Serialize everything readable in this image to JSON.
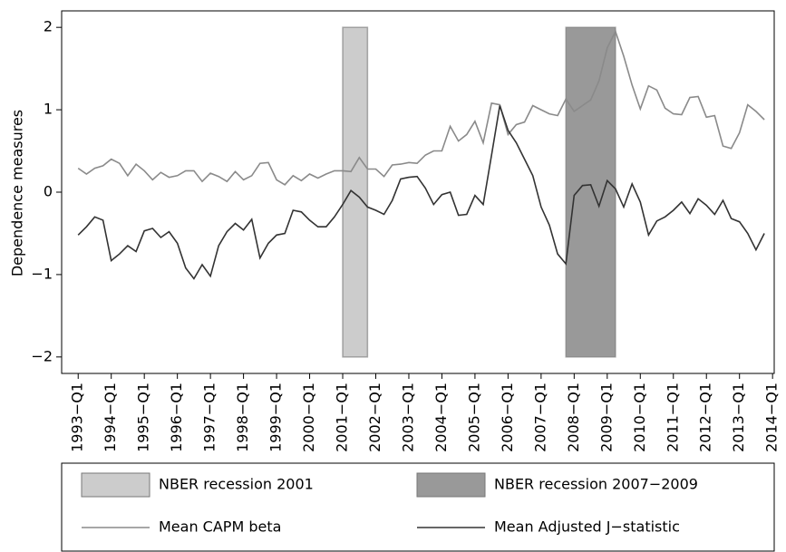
{
  "chart_data": {
    "type": "line",
    "y_label": "Dependence measures",
    "xlim": [
      1992.5,
      2014.05
    ],
    "ylim": [
      -2.2,
      2.2
    ],
    "yticks": [
      {
        "value": -2,
        "label": "−2"
      },
      {
        "value": -1,
        "label": "−1"
      },
      0,
      1,
      2
    ],
    "xticks": [
      {
        "value": 1993,
        "label": "1993−Q1"
      },
      {
        "value": 1994,
        "label": "1994−Q1"
      },
      {
        "value": 1995,
        "label": "1995−Q1"
      },
      {
        "value": 1996,
        "label": "1996−Q1"
      },
      {
        "value": 1997,
        "label": "1997−Q1"
      },
      {
        "value": 1998,
        "label": "1998−Q1"
      },
      {
        "value": 1999,
        "label": "1999−Q1"
      },
      {
        "value": 2000,
        "label": "2000−Q1"
      },
      {
        "value": 2001,
        "label": "2001−Q1"
      },
      {
        "value": 2002,
        "label": "2002−Q1"
      },
      {
        "value": 2003,
        "label": "2003−Q1"
      },
      {
        "value": 2004,
        "label": "2004−Q1"
      },
      {
        "value": 2005,
        "label": "2005−Q1"
      },
      {
        "value": 2006,
        "label": "2006−Q1"
      },
      {
        "value": 2007,
        "label": "2007−Q1"
      },
      {
        "value": 2008,
        "label": "2008−Q1"
      },
      {
        "value": 2009,
        "label": "2009−Q1"
      },
      {
        "value": 2010,
        "label": "2010−Q1"
      },
      {
        "value": 2011,
        "label": "2011−Q1"
      },
      {
        "value": 2012,
        "label": "2012−Q1"
      },
      {
        "value": 2013,
        "label": "2013−Q1"
      },
      {
        "value": 2014,
        "label": "2014−Q1"
      }
    ],
    "bands": [
      {
        "name": "NBER recession 2001",
        "color": "#cccccc",
        "from": 2001,
        "to": 2001.75,
        "ymin": -2,
        "ymax": 2
      },
      {
        "name": "NBER recession 2007−2009",
        "color": "#999999",
        "from": 2007.75,
        "to": 2009.25,
        "ymin": -2,
        "ymax": 2
      }
    ],
    "x": [
      1993,
      1993.25,
      1993.5,
      1993.75,
      1994,
      1994.25,
      1994.5,
      1994.75,
      1995,
      1995.25,
      1995.5,
      1995.75,
      1996,
      1996.25,
      1996.5,
      1996.75,
      1997,
      1997.25,
      1997.5,
      1997.75,
      1998,
      1998.25,
      1998.5,
      1998.75,
      1999,
      1999.25,
      1999.5,
      1999.75,
      2000,
      2000.25,
      2000.5,
      2000.75,
      2001,
      2001.25,
      2001.5,
      2001.75,
      2002,
      2002.25,
      2002.5,
      2002.75,
      2003,
      2003.25,
      2003.5,
      2003.75,
      2004,
      2004.25,
      2004.5,
      2004.75,
      2005,
      2005.25,
      2005.5,
      2005.75,
      2006,
      2006.25,
      2006.5,
      2006.75,
      2007,
      2007.25,
      2007.5,
      2007.75,
      2008,
      2008.25,
      2008.5,
      2008.75,
      2009,
      2009.25,
      2009.5,
      2009.75,
      2010,
      2010.25,
      2010.5,
      2010.75,
      2011,
      2011.25,
      2011.5,
      2011.75,
      2012,
      2012.25,
      2012.5,
      2012.75,
      2013,
      2013.25,
      2013.5,
      2013.75
    ],
    "series": [
      {
        "name": "Mean CAPM beta",
        "color": "#8a8a8a",
        "values": [
          0.29,
          0.22,
          0.29,
          0.32,
          0.4,
          0.35,
          0.2,
          0.34,
          0.26,
          0.15,
          0.24,
          0.18,
          0.2,
          0.26,
          0.26,
          0.13,
          0.23,
          0.19,
          0.13,
          0.25,
          0.15,
          0.2,
          0.35,
          0.36,
          0.15,
          0.09,
          0.2,
          0.14,
          0.22,
          0.17,
          0.22,
          0.26,
          0.26,
          0.25,
          0.42,
          0.28,
          0.28,
          0.19,
          0.33,
          0.34,
          0.36,
          0.35,
          0.45,
          0.5,
          0.5,
          0.8,
          0.62,
          0.7,
          0.86,
          0.6,
          1.08,
          1.06,
          0.7,
          0.82,
          0.85,
          1.05,
          1.0,
          0.95,
          0.93,
          1.13,
          0.98,
          1.05,
          1.12,
          1.35,
          1.75,
          1.95,
          1.65,
          1.3,
          1.01,
          1.29,
          1.24,
          1.02,
          0.95,
          0.94,
          1.15,
          1.16,
          0.91,
          0.93,
          0.56,
          0.53,
          0.72,
          1.06,
          0.98,
          0.88
        ]
      },
      {
        "name": "Mean Adjusted J−statistic",
        "color": "#333333",
        "values": [
          -0.52,
          -0.42,
          -0.3,
          -0.34,
          -0.83,
          -0.75,
          -0.65,
          -0.72,
          -0.47,
          -0.44,
          -0.55,
          -0.48,
          -0.62,
          -0.92,
          -1.05,
          -0.88,
          -1.02,
          -0.65,
          -0.48,
          -0.38,
          -0.46,
          -0.33,
          -0.8,
          -0.62,
          -0.52,
          -0.5,
          -0.22,
          -0.24,
          -0.34,
          -0.42,
          -0.42,
          -0.3,
          -0.15,
          0.02,
          -0.06,
          -0.18,
          -0.22,
          -0.27,
          -0.1,
          0.16,
          0.18,
          0.19,
          0.05,
          -0.15,
          -0.03,
          0.0,
          -0.28,
          -0.27,
          -0.04,
          -0.15,
          0.45,
          1.05,
          0.75,
          0.6,
          0.4,
          0.2,
          -0.18,
          -0.4,
          -0.75,
          -0.87,
          -0.04,
          0.08,
          0.09,
          -0.17,
          0.14,
          0.04,
          -0.18,
          0.1,
          -0.12,
          -0.52,
          -0.35,
          -0.3,
          -0.22,
          -0.12,
          -0.26,
          -0.08,
          -0.16,
          -0.27,
          -0.1,
          -0.32,
          -0.36,
          -0.5,
          -0.7,
          -0.5
        ]
      }
    ]
  }
}
